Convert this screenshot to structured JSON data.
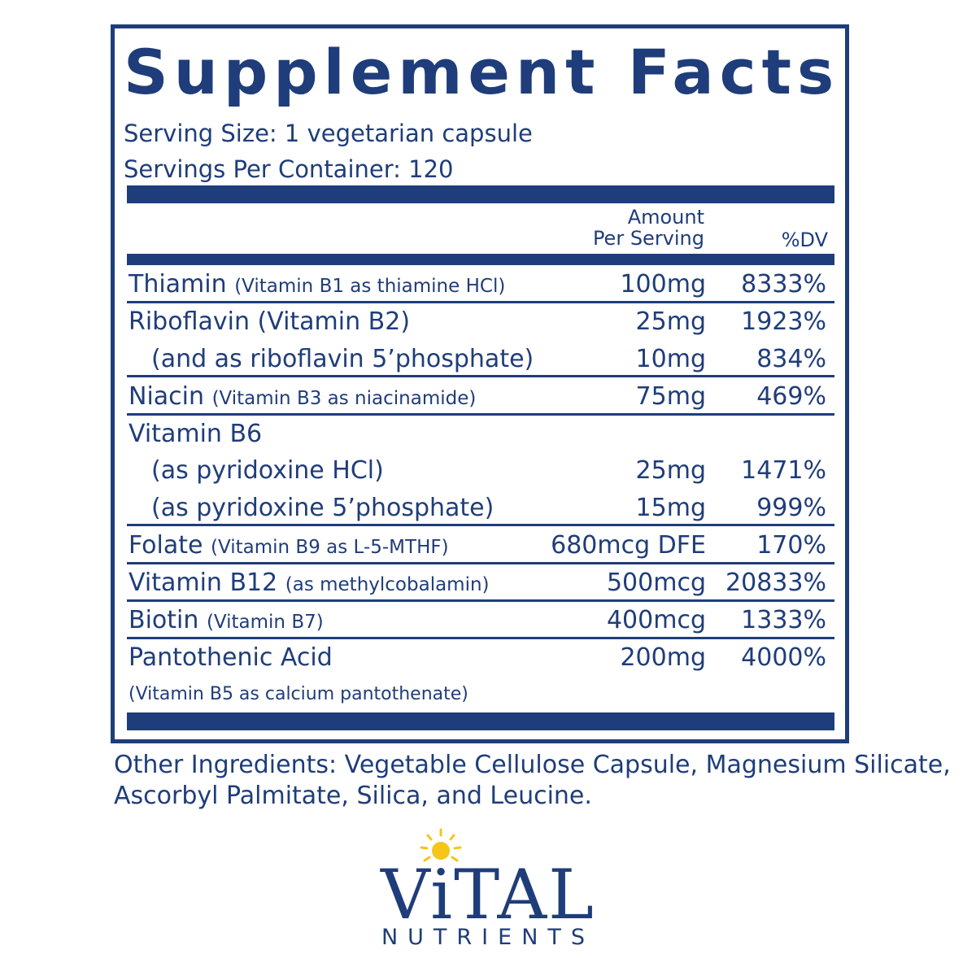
{
  "title": "Supplement Facts",
  "serving_size": "Serving Size: 1 vegetarian capsule",
  "servings_per_container": "Servings Per Container: 120",
  "header": {
    "amount_line1": "Amount",
    "amount_line2": "Per Serving",
    "dv": "%DV"
  },
  "rows": [
    {
      "name": "Thiamin",
      "detail": "(Vitamin B1 as thiamine HCl)",
      "amount": "100mg",
      "dv": "8333%"
    },
    {
      "name": "Riboflavin (Vitamin B2)",
      "detail": "",
      "amount": "25mg",
      "dv": "1923%"
    },
    {
      "name": "(and as riboflavin 5’phosphate)",
      "detail": "",
      "amount": "10mg",
      "dv": "834%"
    },
    {
      "name": "Niacin",
      "detail": "(Vitamin B3 as niacinamide)",
      "amount": "75mg",
      "dv": "469%"
    },
    {
      "name": "Vitamin B6",
      "detail": "",
      "amount": "",
      "dv": ""
    },
    {
      "name": "(as pyridoxine HCl)",
      "detail": "",
      "amount": "25mg",
      "dv": "1471%"
    },
    {
      "name": "(as pyridoxine 5’phosphate)",
      "detail": "",
      "amount": "15mg",
      "dv": "999%"
    },
    {
      "name": "Folate",
      "detail": "(Vitamin B9 as L-5-MTHF)",
      "amount": "680mcg DFE",
      "dv": "170%"
    },
    {
      "name": "Vitamin B12",
      "detail": "(as methylcobalamin)",
      "amount": "500mcg",
      "dv": "20833%"
    },
    {
      "name": "Biotin",
      "detail": "(Vitamin B7)",
      "amount": "400mcg",
      "dv": "1333%"
    },
    {
      "name": "Pantothenic Acid",
      "detail": "",
      "amount": "200mg",
      "dv": "4000%"
    }
  ],
  "pantothenic_note": "(Vitamin B5 as calcium pantothenate)",
  "other_ingredients": "Other Ingredients: Vegetable Cellulose Capsule, Magnesium Silicate, Ascorbyl Palmitate, Silica, and Leucine.",
  "logo": {
    "word1": "ViTAL",
    "word2": "NUTRIENTS",
    "sun_icon": "sun-icon"
  },
  "colors": {
    "brand_blue": "#1f3d7a",
    "sun_yellow": "#f5c518"
  }
}
